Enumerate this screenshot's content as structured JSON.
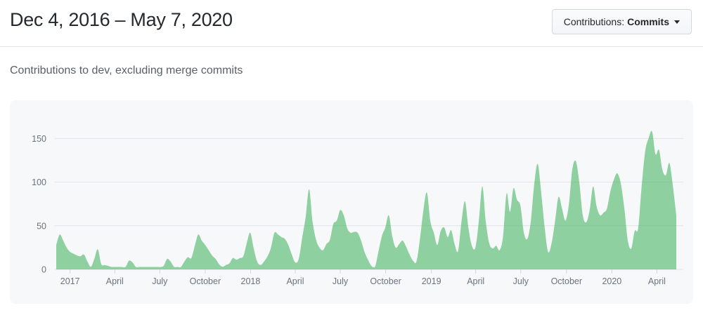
{
  "header": {
    "title": "Dec 4, 2016 – May 7, 2020",
    "dropdown": {
      "label": "Contributions:",
      "value": "Commits",
      "icon": "caret-down"
    }
  },
  "subtitle": "Contributions to dev, excluding merge commits",
  "chart_data": {
    "type": "area",
    "title": "Contributions to dev, excluding merge commits",
    "period_start": "Dec 4, 2016",
    "period_end": "May 7, 2020",
    "interval": "weekly commit counts",
    "ylabel": "",
    "xlabel": "",
    "ylim": [
      0,
      165
    ],
    "grid": true,
    "legend": "none",
    "y_ticks": [
      0,
      50,
      100,
      150
    ],
    "x_ticks": [
      {
        "label": "2017",
        "week": 4
      },
      {
        "label": "April",
        "week": 16.9
      },
      {
        "label": "July",
        "week": 29.9
      },
      {
        "label": "October",
        "week": 43
      },
      {
        "label": "2018",
        "week": 56.1
      },
      {
        "label": "April",
        "week": 69
      },
      {
        "label": "July",
        "week": 82
      },
      {
        "label": "October",
        "week": 95.1
      },
      {
        "label": "2019",
        "week": 108.3
      },
      {
        "label": "April",
        "week": 121.1
      },
      {
        "label": "July",
        "week": 134.1
      },
      {
        "label": "October",
        "week": 147.3
      },
      {
        "label": "2020",
        "week": 160.4
      },
      {
        "label": "April",
        "week": 173.4
      }
    ],
    "values": [
      28,
      40,
      33,
      25,
      20,
      18,
      16,
      15,
      17,
      9,
      3,
      12,
      23,
      6,
      5,
      4,
      1,
      1,
      0,
      0,
      1,
      10,
      8,
      2,
      1,
      0,
      0,
      0,
      0,
      0,
      1,
      4,
      12,
      9,
      3,
      2,
      2,
      9,
      14,
      13,
      27,
      40,
      33,
      28,
      22,
      16,
      12,
      6,
      3,
      5,
      7,
      13,
      11,
      13,
      15,
      30,
      42,
      24,
      9,
      5,
      9,
      15,
      25,
      42,
      40,
      37,
      35,
      28,
      17,
      8,
      12,
      36,
      60,
      92,
      55,
      34,
      25,
      22,
      29,
      34,
      52,
      56,
      68,
      62,
      47,
      42,
      43,
      42,
      33,
      20,
      11,
      4,
      2,
      20,
      38,
      48,
      62,
      38,
      25,
      29,
      33,
      26,
      17,
      10,
      9,
      35,
      68,
      88,
      55,
      42,
      28,
      44,
      48,
      37,
      45,
      29,
      21,
      55,
      78,
      47,
      27,
      25,
      55,
      95,
      55,
      30,
      24,
      27,
      22,
      38,
      87,
      66,
      93,
      80,
      73,
      42,
      35,
      55,
      98,
      121,
      88,
      48,
      20,
      30,
      55,
      83,
      70,
      56,
      75,
      115,
      124,
      100,
      62,
      54,
      68,
      95,
      72,
      62,
      65,
      70,
      90,
      103,
      110,
      98,
      70,
      33,
      24,
      44,
      47,
      95,
      135,
      150,
      158,
      132,
      137,
      114,
      108,
      122,
      96,
      62
    ],
    "colors": {
      "area": "#28a745",
      "area_opacity": 0.5,
      "gridline": "#e1e4e8",
      "tick": "#d1d5da",
      "axis_label": "#6a737d",
      "card_background": "#f6f8fa"
    }
  }
}
